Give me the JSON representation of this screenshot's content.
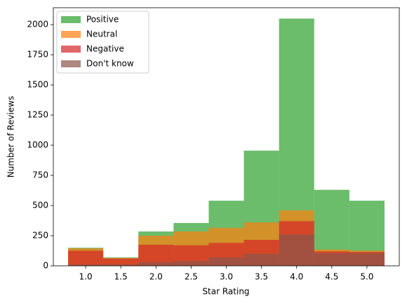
{
  "chart_data": {
    "type": "histogram",
    "xlabel": "Star Rating",
    "ylabel": "Number of Reviews",
    "bins": [
      0.75,
      1.25,
      1.75,
      2.25,
      2.75,
      3.25,
      3.75,
      4.25,
      4.75,
      5.25
    ],
    "series": [
      {
        "name": "Positive",
        "color": "#2ca02c",
        "values": [
          150,
          70,
          285,
          355,
          540,
          955,
          2050,
          630,
          540
        ]
      },
      {
        "name": "Neutral",
        "color": "#ff7f0e",
        "values": [
          145,
          65,
          250,
          285,
          315,
          360,
          460,
          135,
          125
        ]
      },
      {
        "name": "Negative",
        "color": "#d62728",
        "values": [
          125,
          60,
          175,
          170,
          190,
          215,
          370,
          120,
          115
        ]
      },
      {
        "name": "Don't know",
        "color": "#8c564b",
        "values": [
          10,
          10,
          30,
          40,
          70,
          100,
          260,
          105,
          105
        ]
      }
    ],
    "opacity": 0.7,
    "xlim": [
      0.54,
      5.46
    ],
    "xticks": [
      {
        "value": 1,
        "label": "1.0"
      },
      {
        "value": 1.5,
        "label": "1.5"
      },
      {
        "value": 2,
        "label": "2.0"
      },
      {
        "value": 2.5,
        "label": "2.5"
      },
      {
        "value": 3,
        "label": "3.0"
      },
      {
        "value": 3.5,
        "label": "3.5"
      },
      {
        "value": 4,
        "label": "4.0"
      },
      {
        "value": 4.5,
        "label": "4.5"
      },
      {
        "value": 5,
        "label": "5.0"
      }
    ],
    "ylim": [
      0,
      2140
    ],
    "yticks": [
      0,
      250,
      500,
      750,
      1000,
      1250,
      1500,
      1750,
      2000
    ],
    "legend": "upper left"
  }
}
